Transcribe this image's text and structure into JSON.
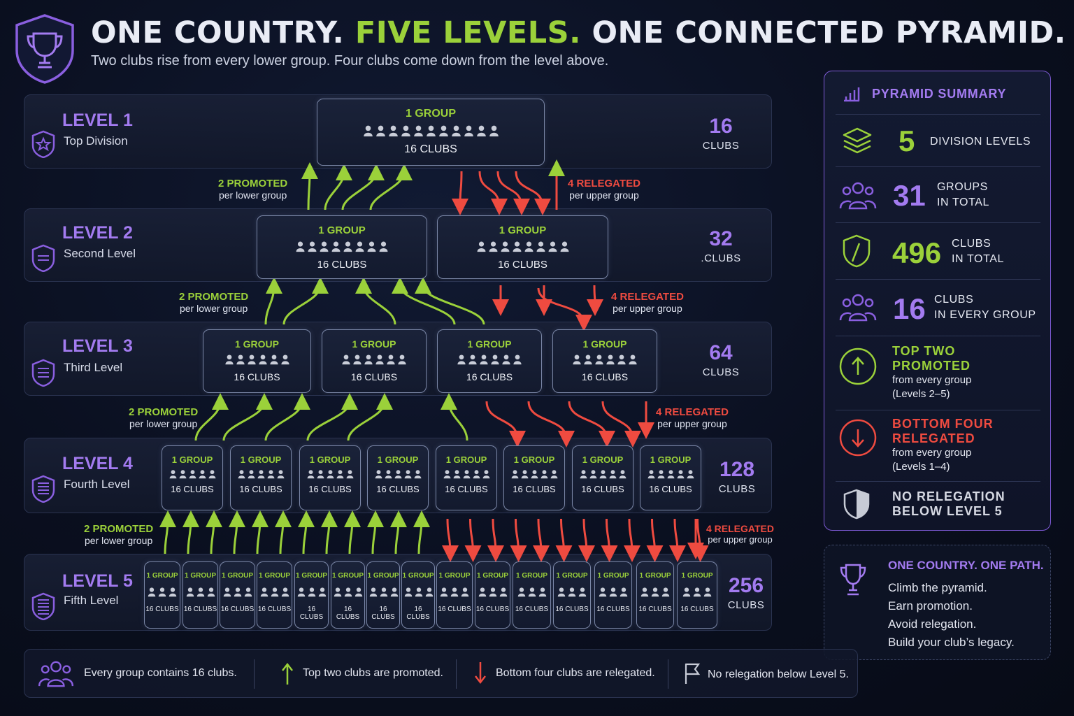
{
  "header": {
    "title_part1": "ONE COUNTRY.",
    "title_part2": "FIVE LEVELS.",
    "title_part3": "ONE CONNECTED PYRAMID.",
    "subtitle": "Two clubs rise from every lower group. Four clubs come down from the level above."
  },
  "group_label": "1 GROUP",
  "clubs_label": "16 CLUBS",
  "levels": [
    {
      "title": "LEVEL 1",
      "sub": "Top Division",
      "count": "16",
      "unit": "CLUBS",
      "groups": 1
    },
    {
      "title": "LEVEL 2",
      "sub": "Second Level",
      "count": "32",
      "unit": ".CLUBS",
      "groups": 2
    },
    {
      "title": "LEVEL 3",
      "sub": "Third Level",
      "count": "64",
      "unit": "CLUBS",
      "groups": 4
    },
    {
      "title": "LEVEL 4",
      "sub": "Fourth Level",
      "count": "128",
      "unit": "CLUBS",
      "groups": 8
    },
    {
      "title": "LEVEL 5",
      "sub": "Fifth Level",
      "count": "256",
      "unit": "CLUBS",
      "groups": 16
    }
  ],
  "transitions": {
    "promoted": "2 PROMOTED",
    "promoted_sub": "per lower group",
    "relegated": "4 RELEGATED",
    "relegated_sub": "per upper group"
  },
  "summary": {
    "heading": "PYRAMID SUMMARY",
    "division_levels_value": "5",
    "division_levels_label": "DIVISION LEVELS",
    "groups_value": "31",
    "groups_label1": "GROUPS",
    "groups_label2": "IN TOTAL",
    "clubs_value": "496",
    "clubs_label1": "CLUBS",
    "clubs_label2": "IN TOTAL",
    "per_group_value": "16",
    "per_group_label1": "CLUBS",
    "per_group_label2": "IN EVERY GROUP",
    "promo_title1": "TOP TWO",
    "promo_title2": "PROMOTED",
    "promo_sub1": "from every group",
    "promo_sub2": "(Levels 2–5)",
    "releg_title1": "BOTTOM FOUR",
    "releg_title2": "RELEGATED",
    "releg_sub1": "from every group",
    "releg_sub2": "(Levels 1–4)",
    "norel1": "NO RELEGATION",
    "norel2": "BELOW LEVEL 5"
  },
  "path_box": {
    "heading": "ONE COUNTRY. ONE PATH.",
    "line1": "Climb the pyramid.",
    "line2": "Earn promotion.",
    "line3": "Avoid relegation.",
    "line4": "Build your club’s legacy."
  },
  "legend": {
    "item1": "Every group contains 16 clubs.",
    "item2": "Top two clubs are promoted.",
    "item3": "Bottom four clubs are relegated.",
    "item4": "No relegation below Level 5."
  },
  "colors": {
    "accent_purple": "#a37bf0",
    "promote_green": "#9bd13a",
    "relegate_red": "#ef4b40",
    "background": "#0a0f1f"
  }
}
